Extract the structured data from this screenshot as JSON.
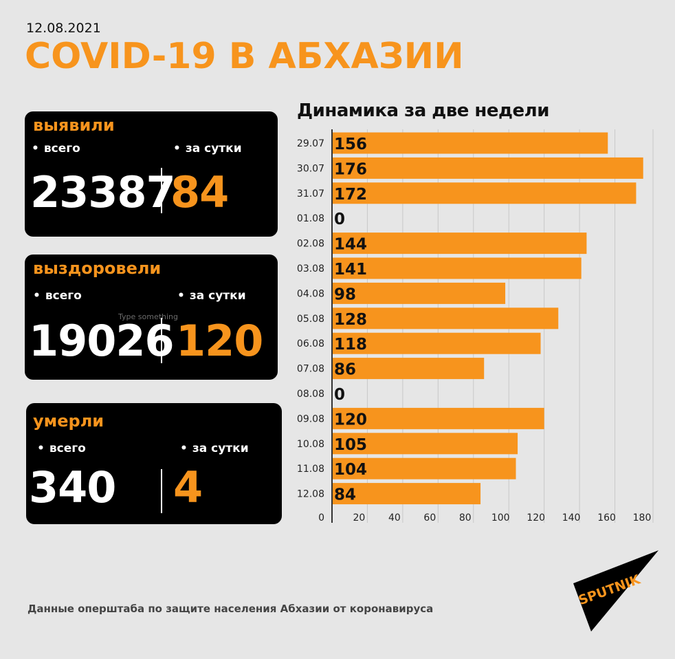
{
  "header": {
    "date": "12.08.2021",
    "title": "COVID-19 В АБХАЗИИ"
  },
  "cards": [
    {
      "label": "выявили",
      "total_label": "всего",
      "daily_label": "за сутки",
      "total": "23387",
      "daily": "84"
    },
    {
      "label": "выздоровели",
      "total_label": "всего",
      "daily_label": "за сутки",
      "total": "19026",
      "daily": "120"
    },
    {
      "label": "умерли",
      "total_label": "всего",
      "daily_label": "за сутки",
      "total": "340",
      "daily": "4"
    }
  ],
  "overlay_hint": "Type something",
  "footer": "Данные оперштаба по защите населения Абхазии от коронавируса",
  "logo_text": "SPUTNIK",
  "colors": {
    "accent": "#f7941d",
    "card_bg": "#000000",
    "background": "#e6e6e6"
  },
  "chart_data": {
    "type": "bar",
    "orientation": "horizontal",
    "title": "Динамика за две недели",
    "categories": [
      "29.07",
      "30.07",
      "31.07",
      "01.08",
      "02.08",
      "03.08",
      "04.08",
      "05.08",
      "06.08",
      "07.08",
      "08.08",
      "09.08",
      "10.08",
      "11.08",
      "12.08"
    ],
    "values": [
      156,
      176,
      172,
      0,
      144,
      141,
      98,
      128,
      118,
      86,
      0,
      120,
      105,
      104,
      84
    ],
    "xlim": [
      0,
      180
    ],
    "xticks": [
      0,
      20,
      40,
      60,
      80,
      100,
      120,
      140,
      160,
      180
    ],
    "grid": true,
    "xlabel": "",
    "ylabel": ""
  }
}
